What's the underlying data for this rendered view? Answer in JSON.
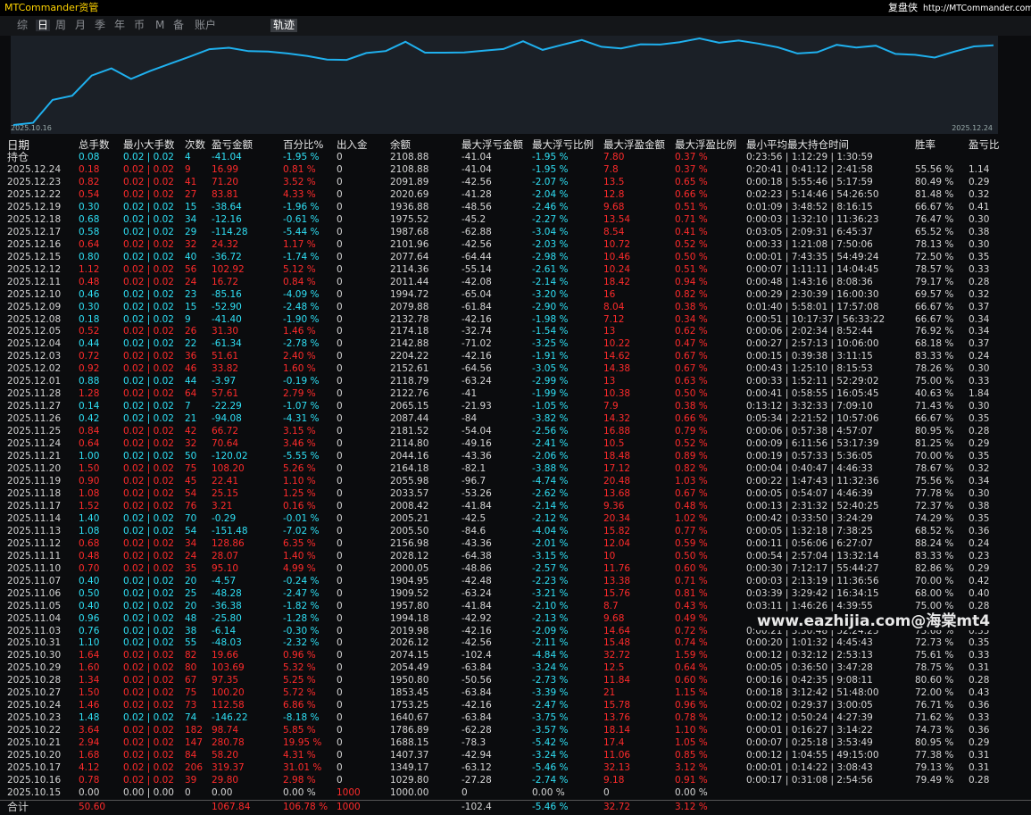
{
  "header": {
    "brand": "MTCommander资管",
    "right_label": "复盘侠",
    "url": "http://MTCommander.com"
  },
  "tabs": {
    "items": [
      "综",
      "日",
      "周",
      "月",
      "季",
      "年",
      "币",
      "M",
      "备",
      "账户"
    ],
    "active": 1,
    "button": "轨迹"
  },
  "chart": {
    "start_label": "2025.10.16",
    "end_label": "2025.12.24",
    "color": "#1fb0ee"
  },
  "table": {
    "columns": [
      "日期",
      "总手数",
      "最小大手数",
      "次数",
      "盈亏金额",
      "百分比%",
      "出入金",
      "余额",
      "最大浮亏金额",
      "最大浮亏比例",
      "最大浮盈金额",
      "最大浮盈比例",
      "最小平均最大持仓时间",
      "胜率",
      "盈亏比"
    ],
    "position": [
      "持仓",
      "0.08",
      "0.02 | 0.02",
      "4",
      "-41.04",
      "-1.95 %",
      "0",
      "2108.88",
      "-41.04",
      "-1.95 %",
      "7.80",
      "0.37 %",
      "0:23:56 | 1:12:29 | 1:30:59"
    ],
    "rows": [
      [
        "2025.12.24",
        "0.18",
        "0.02 | 0.02",
        "9",
        "16.99",
        "0.81 %",
        "0",
        "2108.88",
        "-41.04",
        "-1.95 %",
        "7.8",
        "0.37 %",
        "0:20:41 | 0:41:12 | 2:41:58",
        "55.56 %",
        "1.14"
      ],
      [
        "2025.12.23",
        "0.82",
        "0.02 | 0.02",
        "41",
        "71.20",
        "3.52 %",
        "0",
        "2091.89",
        "-42.56",
        "-2.07 %",
        "13.5",
        "0.65 %",
        "0:00:18 | 5:55:46 | 5:17:59",
        "80.49 %",
        "0.29"
      ],
      [
        "2025.12.22",
        "0.54",
        "0.02 | 0.02",
        "27",
        "83.81",
        "4.33 %",
        "0",
        "2020.69",
        "-41.28",
        "-2.04 %",
        "12.8",
        "0.66 %",
        "0:02:23 | 5:14:46 | 54:26:50",
        "81.48 %",
        "0.32"
      ],
      [
        "2025.12.19",
        "0.30",
        "0.02 | 0.02",
        "15",
        "-38.64",
        "-1.96 %",
        "0",
        "1936.88",
        "-48.56",
        "-2.46 %",
        "9.68",
        "0.51 %",
        "0:01:09 | 3:48:52 | 8:16:15",
        "66.67 %",
        "0.41"
      ],
      [
        "2025.12.18",
        "0.68",
        "0.02 | 0.02",
        "34",
        "-12.16",
        "-0.61 %",
        "0",
        "1975.52",
        "-45.2",
        "-2.27 %",
        "13.54",
        "0.71 %",
        "0:00:03 | 1:32:10 | 11:36:23",
        "76.47 %",
        "0.30"
      ],
      [
        "2025.12.17",
        "0.58",
        "0.02 | 0.02",
        "29",
        "-114.28",
        "-5.44 %",
        "0",
        "1987.68",
        "-62.88",
        "-3.04 %",
        "8.54",
        "0.41 %",
        "0:03:05 | 2:09:31 | 6:45:37",
        "65.52 %",
        "0.38"
      ],
      [
        "2025.12.16",
        "0.64",
        "0.02 | 0.02",
        "32",
        "24.32",
        "1.17 %",
        "0",
        "2101.96",
        "-42.56",
        "-2.03 %",
        "10.72",
        "0.52 %",
        "0:00:33 | 1:21:08 | 7:50:06",
        "78.13 %",
        "0.30"
      ],
      [
        "2025.12.15",
        "0.80",
        "0.02 | 0.02",
        "40",
        "-36.72",
        "-1.74 %",
        "0",
        "2077.64",
        "-64.44",
        "-2.98 %",
        "10.46",
        "0.50 %",
        "0:00:01 | 7:43:35 | 54:49:24",
        "72.50 %",
        "0.35"
      ],
      [
        "2025.12.12",
        "1.12",
        "0.02 | 0.02",
        "56",
        "102.92",
        "5.12 %",
        "0",
        "2114.36",
        "-55.14",
        "-2.61 %",
        "10.24",
        "0.51 %",
        "0:00:07 | 1:11:11 | 14:04:45",
        "78.57 %",
        "0.33"
      ],
      [
        "2025.12.11",
        "0.48",
        "0.02 | 0.02",
        "24",
        "16.72",
        "0.84 %",
        "0",
        "2011.44",
        "-42.08",
        "-2.14 %",
        "18.42",
        "0.94 %",
        "0:00:48 | 1:43:16 | 8:08:36",
        "79.17 %",
        "0.28"
      ],
      [
        "2025.12.10",
        "0.46",
        "0.02 | 0.02",
        "23",
        "-85.16",
        "-4.09 %",
        "0",
        "1994.72",
        "-65.04",
        "-3.20 %",
        "16",
        "0.82 %",
        "0:00:29 | 2:30:39 | 16:00:30",
        "69.57 %",
        "0.32"
      ],
      [
        "2025.12.09",
        "0.30",
        "0.02 | 0.02",
        "15",
        "-52.90",
        "-2.48 %",
        "0",
        "2079.88",
        "-61.84",
        "-2.90 %",
        "8.04",
        "0.38 %",
        "0:01:40 | 5:58:01 | 17:57:08",
        "66.67 %",
        "0.37"
      ],
      [
        "2025.12.08",
        "0.18",
        "0.02 | 0.02",
        "9",
        "-41.40",
        "-1.90 %",
        "0",
        "2132.78",
        "-42.16",
        "-1.98 %",
        "7.12",
        "0.34 %",
        "0:00:51 | 10:17:37 | 56:33:22",
        "66.67 %",
        "0.34"
      ],
      [
        "2025.12.05",
        "0.52",
        "0.02 | 0.02",
        "26",
        "31.30",
        "1.46 %",
        "0",
        "2174.18",
        "-32.74",
        "-1.54 %",
        "13",
        "0.62 %",
        "0:00:06 | 2:02:34 | 8:52:44",
        "76.92 %",
        "0.34"
      ],
      [
        "2025.12.04",
        "0.44",
        "0.02 | 0.02",
        "22",
        "-61.34",
        "-2.78 %",
        "0",
        "2142.88",
        "-71.02",
        "-3.25 %",
        "10.22",
        "0.47 %",
        "0:00:27 | 2:57:13 | 10:06:00",
        "68.18 %",
        "0.37"
      ],
      [
        "2025.12.03",
        "0.72",
        "0.02 | 0.02",
        "36",
        "51.61",
        "2.40 %",
        "0",
        "2204.22",
        "-42.16",
        "-1.91 %",
        "14.62",
        "0.67 %",
        "0:00:15 | 0:39:38 | 3:11:15",
        "83.33 %",
        "0.24"
      ],
      [
        "2025.12.02",
        "0.92",
        "0.02 | 0.02",
        "46",
        "33.82",
        "1.60 %",
        "0",
        "2152.61",
        "-64.56",
        "-3.05 %",
        "14.38",
        "0.67 %",
        "0:00:43 | 1:25:10 | 8:15:53",
        "78.26 %",
        "0.30"
      ],
      [
        "2025.12.01",
        "0.88",
        "0.02 | 0.02",
        "44",
        "-3.97",
        "-0.19 %",
        "0",
        "2118.79",
        "-63.24",
        "-2.99 %",
        "13",
        "0.63 %",
        "0:00:33 | 1:52:11 | 52:29:02",
        "75.00 %",
        "0.33"
      ],
      [
        "2025.11.28",
        "1.28",
        "0.02 | 0.02",
        "64",
        "57.61",
        "2.79 %",
        "0",
        "2122.76",
        "-41",
        "-1.99 %",
        "10.38",
        "0.50 %",
        "0:00:41 | 0:58:55 | 16:05:45",
        "40.63 %",
        "1.84"
      ],
      [
        "2025.11.27",
        "0.14",
        "0.02 | 0.02",
        "7",
        "-22.29",
        "-1.07 %",
        "0",
        "2065.15",
        "-21.93",
        "-1.05 %",
        "7.9",
        "0.38 %",
        "0:13:12 | 3:32:33 | 7:09:10",
        "71.43 %",
        "0.30"
      ],
      [
        "2025.11.26",
        "0.42",
        "0.02 | 0.02",
        "21",
        "-94.08",
        "-4.31 %",
        "0",
        "2087.44",
        "-84",
        "-3.82 %",
        "14.32",
        "0.66 %",
        "0:05:34 | 2:21:52 | 10:57:06",
        "66.67 %",
        "0.35"
      ],
      [
        "2025.11.25",
        "0.84",
        "0.02 | 0.02",
        "42",
        "66.72",
        "3.15 %",
        "0",
        "2181.52",
        "-54.04",
        "-2.56 %",
        "16.88",
        "0.79 %",
        "0:00:06 | 0:57:38 | 4:57:07",
        "80.95 %",
        "0.28"
      ],
      [
        "2025.11.24",
        "0.64",
        "0.02 | 0.02",
        "32",
        "70.64",
        "3.46 %",
        "0",
        "2114.80",
        "-49.16",
        "-2.41 %",
        "10.5",
        "0.52 %",
        "0:00:09 | 6:11:56 | 53:17:39",
        "81.25 %",
        "0.29"
      ],
      [
        "2025.11.21",
        "1.00",
        "0.02 | 0.02",
        "50",
        "-120.02",
        "-5.55 %",
        "0",
        "2044.16",
        "-43.36",
        "-2.06 %",
        "18.48",
        "0.89 %",
        "0:00:19 | 0:57:33 | 5:36:05",
        "70.00 %",
        "0.35"
      ],
      [
        "2025.11.20",
        "1.50",
        "0.02 | 0.02",
        "75",
        "108.20",
        "5.26 %",
        "0",
        "2164.18",
        "-82.1",
        "-3.88 %",
        "17.12",
        "0.82 %",
        "0:00:04 | 0:40:47 | 4:46:33",
        "78.67 %",
        "0.32"
      ],
      [
        "2025.11.19",
        "0.90",
        "0.02 | 0.02",
        "45",
        "22.41",
        "1.10 %",
        "0",
        "2055.98",
        "-96.7",
        "-4.74 %",
        "20.48",
        "1.03 %",
        "0:00:22 | 1:47:43 | 11:32:36",
        "75.56 %",
        "0.34"
      ],
      [
        "2025.11.18",
        "1.08",
        "0.02 | 0.02",
        "54",
        "25.15",
        "1.25 %",
        "0",
        "2033.57",
        "-53.26",
        "-2.62 %",
        "13.68",
        "0.67 %",
        "0:00:05 | 0:54:07 | 4:46:39",
        "77.78 %",
        "0.30"
      ],
      [
        "2025.11.17",
        "1.52",
        "0.02 | 0.02",
        "76",
        "3.21",
        "0.16 %",
        "0",
        "2008.42",
        "-41.84",
        "-2.14 %",
        "9.36",
        "0.48 %",
        "0:00:13 | 2:31:32 | 52:40:25",
        "72.37 %",
        "0.38"
      ],
      [
        "2025.11.14",
        "1.40",
        "0.02 | 0.02",
        "70",
        "-0.29",
        "-0.01 %",
        "0",
        "2005.21",
        "-42.5",
        "-2.12 %",
        "20.34",
        "1.02 %",
        "0:00:42 | 0:33:50 | 3:24:29",
        "74.29 %",
        "0.35"
      ],
      [
        "2025.11.13",
        "1.08",
        "0.02 | 0.02",
        "54",
        "-151.48",
        "-7.02 %",
        "0",
        "2005.50",
        "-84.6",
        "-4.04 %",
        "15.82",
        "0.77 %",
        "0:00:05 | 1:32:18 | 7:38:25",
        "68.52 %",
        "0.36"
      ],
      [
        "2025.11.12",
        "0.68",
        "0.02 | 0.02",
        "34",
        "128.86",
        "6.35 %",
        "0",
        "2156.98",
        "-43.36",
        "-2.01 %",
        "12.04",
        "0.59 %",
        "0:00:11 | 0:56:06 | 6:27:07",
        "88.24 %",
        "0.24"
      ],
      [
        "2025.11.11",
        "0.48",
        "0.02 | 0.02",
        "24",
        "28.07",
        "1.40 %",
        "0",
        "2028.12",
        "-64.38",
        "-3.15 %",
        "10",
        "0.50 %",
        "0:00:54 | 2:57:04 | 13:32:14",
        "83.33 %",
        "0.23"
      ],
      [
        "2025.11.10",
        "0.70",
        "0.02 | 0.02",
        "35",
        "95.10",
        "4.99 %",
        "0",
        "2000.05",
        "-48.86",
        "-2.57 %",
        "11.76",
        "0.60 %",
        "0:00:30 | 7:12:17 | 55:44:27",
        "82.86 %",
        "0.29"
      ],
      [
        "2025.11.07",
        "0.40",
        "0.02 | 0.02",
        "20",
        "-4.57",
        "-0.24 %",
        "0",
        "1904.95",
        "-42.48",
        "-2.23 %",
        "13.38",
        "0.71 %",
        "0:00:03 | 2:13:19 | 11:36:56",
        "70.00 %",
        "0.42"
      ],
      [
        "2025.11.06",
        "0.50",
        "0.02 | 0.02",
        "25",
        "-48.28",
        "-2.47 %",
        "0",
        "1909.52",
        "-63.24",
        "-3.21 %",
        "15.76",
        "0.81 %",
        "0:03:39 | 3:29:42 | 16:34:15",
        "68.00 %",
        "0.40"
      ],
      [
        "2025.11.05",
        "0.40",
        "0.02 | 0.02",
        "20",
        "-36.38",
        "-1.82 %",
        "0",
        "1957.80",
        "-41.84",
        "-2.10 %",
        "8.7",
        "0.43 %",
        "0:03:11 | 1:46:26 | 4:39:55",
        "75.00 %",
        "0.28"
      ],
      [
        "2025.11.04",
        "0.96",
        "0.02 | 0.02",
        "48",
        "-25.80",
        "-1.28 %",
        "0",
        "1994.18",
        "-42.92",
        "-2.13 %",
        "9.68",
        "0.49 %"
      ],
      [
        "2025.11.03",
        "0.76",
        "0.02 | 0.02",
        "38",
        "-6.14",
        "-0.30 %",
        "0",
        "2019.98",
        "-42.16",
        "-2.09 %",
        "14.64",
        "0.72 %",
        "0:00:21 | 3:30:48 | 52:24:25",
        "73.68 %",
        "0.35"
      ],
      [
        "2025.10.31",
        "1.10",
        "0.02 | 0.02",
        "55",
        "-48.03",
        "-2.32 %",
        "0",
        "2026.12",
        "-42.56",
        "-2.11 %",
        "15.48",
        "0.74 %",
        "0:00:20 | 1:01:32 | 4:45:43",
        "72.73 %",
        "0.35"
      ],
      [
        "2025.10.30",
        "1.64",
        "0.02 | 0.02",
        "82",
        "19.66",
        "0.96 %",
        "0",
        "2074.15",
        "-102.4",
        "-4.84 %",
        "32.72",
        "1.59 %",
        "0:00:12 | 0:32:12 | 2:53:13",
        "75.61 %",
        "0.33"
      ],
      [
        "2025.10.29",
        "1.60",
        "0.02 | 0.02",
        "80",
        "103.69",
        "5.32 %",
        "0",
        "2054.49",
        "-63.84",
        "-3.24 %",
        "12.5",
        "0.64 %",
        "0:00:05 | 0:36:50 | 3:47:28",
        "78.75 %",
        "0.31"
      ],
      [
        "2025.10.28",
        "1.34",
        "0.02 | 0.02",
        "67",
        "97.35",
        "5.25 %",
        "0",
        "1950.80",
        "-50.56",
        "-2.73 %",
        "11.84",
        "0.60 %",
        "0:00:16 | 0:42:35 | 9:08:11",
        "80.60 %",
        "0.28"
      ],
      [
        "2025.10.27",
        "1.50",
        "0.02 | 0.02",
        "75",
        "100.20",
        "5.72 %",
        "0",
        "1853.45",
        "-63.84",
        "-3.39 %",
        "21",
        "1.15 %",
        "0:00:18 | 3:12:42 | 51:48:00",
        "72.00 %",
        "0.43"
      ],
      [
        "2025.10.24",
        "1.46",
        "0.02 | 0.02",
        "73",
        "112.58",
        "6.86 %",
        "0",
        "1753.25",
        "-42.16",
        "-2.47 %",
        "15.78",
        "0.96 %",
        "0:00:02 | 0:29:37 | 3:00:05",
        "76.71 %",
        "0.36"
      ],
      [
        "2025.10.23",
        "1.48",
        "0.02 | 0.02",
        "74",
        "-146.22",
        "-8.18 %",
        "0",
        "1640.67",
        "-63.84",
        "-3.75 %",
        "13.76",
        "0.78 %",
        "0:00:12 | 0:50:24 | 4:27:39",
        "71.62 %",
        "0.33"
      ],
      [
        "2025.10.22",
        "3.64",
        "0.02 | 0.02",
        "182",
        "98.74",
        "5.85 %",
        "0",
        "1786.89",
        "-62.28",
        "-3.57 %",
        "18.14",
        "1.10 %",
        "0:00:01 | 0:16:27 | 3:14:22",
        "74.73 %",
        "0.36"
      ],
      [
        "2025.10.21",
        "2.94",
        "0.02 | 0.02",
        "147",
        "280.78",
        "19.95 %",
        "0",
        "1688.15",
        "-78.3",
        "-5.42 %",
        "17.4",
        "1.05 %",
        "0:00:07 | 0:25:18 | 3:53:49",
        "80.95 %",
        "0.29"
      ],
      [
        "2025.10.20",
        "1.68",
        "0.02 | 0.02",
        "84",
        "58.20",
        "4.31 %",
        "0",
        "1407.37",
        "-42.94",
        "-3.24 %",
        "11.06",
        "0.85 %",
        "0:00:12 | 1:04:55 | 49:15:00",
        "77.38 %",
        "0.31"
      ],
      [
        "2025.10.17",
        "4.12",
        "0.02 | 0.02",
        "206",
        "319.37",
        "31.01 %",
        "0",
        "1349.17",
        "-63.12",
        "-5.46 %",
        "32.13",
        "3.12 %",
        "0:00:01 | 0:14:22 | 3:08:43",
        "79.13 %",
        "0.31"
      ],
      [
        "2025.10.16",
        "0.78",
        "0.02 | 0.02",
        "39",
        "29.80",
        "2.98 %",
        "0",
        "1029.80",
        "-27.28",
        "-2.74 %",
        "9.18",
        "0.91 %",
        "0:00:17 | 0:31:08 | 2:54:56",
        "79.49 %",
        "0.28"
      ],
      [
        "2025.10.15",
        "0.00",
        "0.00 | 0.00",
        "0",
        "0.00",
        "0.00 %",
        "1000",
        "1000.00",
        "0",
        "0.00 %",
        "0",
        "0.00 %"
      ]
    ],
    "total": {
      "0": "合计",
      "1": "50.60",
      "4": "1067.84",
      "5": "106.78 %",
      "6": "1000",
      "8": "-102.4",
      "9": "-5.46 %",
      "10": "32.72",
      "11": "3.12 %"
    }
  },
  "watermark": "www.eazhijia.com@海棠mt4"
}
